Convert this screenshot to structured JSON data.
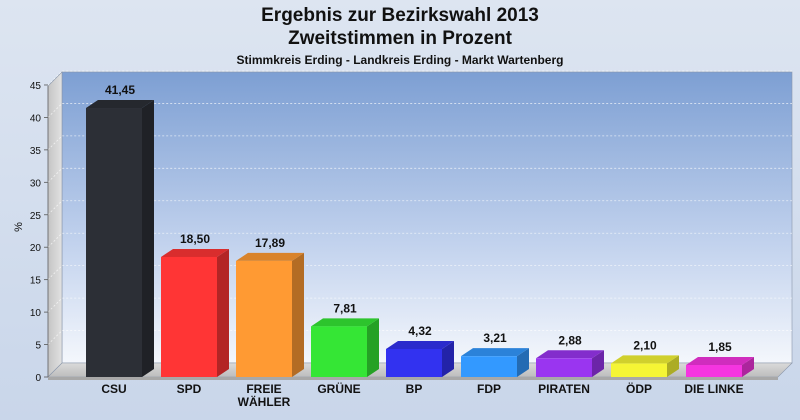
{
  "title_line1": "Ergebnis zur Bezirkswahl 2013",
  "title_line2": "Zweitstimmen in Prozent",
  "subtitle": "Stimmkreis Erding - Landkreis Erding - Markt Wartenberg",
  "chart_data": {
    "type": "bar",
    "title": "Ergebnis zur Bezirkswahl 2013 Zweitstimmen in Prozent",
    "subtitle": "Stimmkreis Erding - Landkreis Erding - Markt Wartenberg",
    "ylabel": "%",
    "xlabel": "",
    "ylim": [
      0,
      47
    ],
    "yticks": [
      0,
      5,
      10,
      15,
      20,
      25,
      30,
      35,
      40,
      45
    ],
    "grid": true,
    "categories": [
      "CSU",
      "SPD",
      "FREIE WÄHLER",
      "GRÜNE",
      "BP",
      "FDP",
      "PIRATEN",
      "ÖDP",
      "DIE LINKE"
    ],
    "category_lines": [
      [
        "CSU"
      ],
      [
        "SPD"
      ],
      [
        "FREIE",
        "WÄHLER"
      ],
      [
        "GRÜNE"
      ],
      [
        "BP"
      ],
      [
        "FDP"
      ],
      [
        "PIRATEN"
      ],
      [
        "ÖDP"
      ],
      [
        "DIE LINKE"
      ]
    ],
    "values": [
      41.45,
      18.5,
      17.89,
      7.81,
      4.32,
      3.21,
      2.88,
      2.1,
      1.85
    ],
    "value_labels": [
      "41,45",
      "18,50",
      "17,89",
      "7,81",
      "4,32",
      "3,21",
      "2,88",
      "2,10",
      "1,85"
    ],
    "colors": [
      "#2c2f36",
      "#ff3535",
      "#ff9a33",
      "#35e635",
      "#3232f0",
      "#3399ff",
      "#9a35f0",
      "#f5f535",
      "#f535e0"
    ]
  }
}
